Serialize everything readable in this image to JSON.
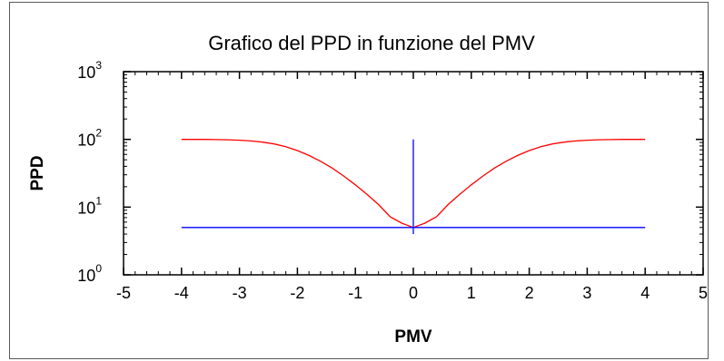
{
  "chart_data": {
    "type": "line",
    "title": "Grafico del PPD in funzione del PMV",
    "xlabel": "PMV",
    "ylabel": "PPD",
    "xlim": [
      -5,
      5
    ],
    "ylim": [
      1,
      1000
    ],
    "yscale": "log",
    "grid": false,
    "legend": "none",
    "x_ticks": [
      "-5",
      "-4",
      "-3",
      "-2",
      "-1",
      "0",
      "1",
      "2",
      "3",
      "4",
      "5"
    ],
    "y_ticks": [
      {
        "base": "10",
        "exp": "0"
      },
      {
        "base": "10",
        "exp": "1"
      },
      {
        "base": "10",
        "exp": "2"
      },
      {
        "base": "10",
        "exp": "3"
      }
    ],
    "series": [
      {
        "color": "#ff0000",
        "x": [
          -4.0,
          -3.8,
          -3.6,
          -3.4,
          -3.2,
          -3.0,
          -2.8,
          -2.6,
          -2.4,
          -2.2,
          -2.0,
          -1.8,
          -1.6,
          -1.4,
          -1.2,
          -1.0,
          -0.8,
          -0.6,
          -0.4,
          -0.2,
          0.0,
          0.2,
          0.4,
          0.6,
          0.8,
          1.0,
          1.2,
          1.4,
          1.6,
          1.8,
          2.0,
          2.2,
          2.4,
          2.6,
          2.8,
          3.0,
          3.2,
          3.4,
          3.6,
          3.8,
          4.0
        ],
        "y": [
          100.0,
          99.9,
          99.8,
          99.4,
          98.7,
          97.3,
          94.9,
          91.2,
          85.5,
          77.9,
          68.3,
          57.9,
          47.5,
          37.7,
          28.7,
          21.3,
          15.4,
          10.9,
          7.2,
          5.8,
          5.0,
          5.8,
          7.2,
          10.9,
          15.4,
          21.3,
          28.7,
          37.7,
          47.5,
          57.9,
          68.3,
          77.9,
          85.5,
          91.2,
          94.9,
          97.3,
          98.7,
          99.4,
          99.8,
          99.9,
          100.0
        ]
      },
      {
        "color": "#0000ff",
        "x": [
          -4.0,
          4.0
        ],
        "y": [
          5.0,
          5.0
        ]
      },
      {
        "color": "#0000ff",
        "x": [
          0.0,
          0.0
        ],
        "y": [
          4.0,
          100.0
        ]
      }
    ]
  }
}
